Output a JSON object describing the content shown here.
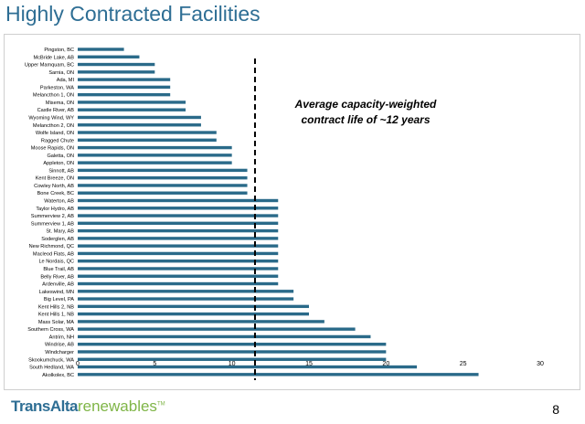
{
  "page": {
    "title": "Highly Contracted Facilities",
    "page_number": "8"
  },
  "logo": {
    "brand": "TransAlta",
    "sub": "renewables",
    "mark": "TM"
  },
  "colors": {
    "bar": "#2a6a89",
    "title": "#2e6e94",
    "logo_green": "#7fb547",
    "reference_line": "#000000"
  },
  "chart_data": {
    "type": "bar",
    "orientation": "horizontal",
    "title": "",
    "xlabel": "",
    "ylabel": "",
    "xlim": [
      0,
      30
    ],
    "xticks": [
      0,
      5,
      10,
      15,
      20,
      25,
      30
    ],
    "grid": false,
    "reference_line": {
      "value": 11.5,
      "style": "dashed",
      "label_line1": "Average capacity-weighted",
      "label_line2": "contract life of ~12 years"
    },
    "categories": [
      "Pingston, BC",
      "McBride Lake, AB",
      "Upper Mamquam, BC",
      "Sarnia, ON",
      "Ada, MI",
      "Parkeston, WA",
      "Melancthon 1, ON",
      "Misema, ON",
      "Castle River, AB",
      "Wyoming Wind, WY",
      "Melancthon 2, ON",
      "Wolfe Island, ON",
      "Ragged Chute",
      "Moose Rapids, ON",
      "Galetta, ON",
      "Appleton, ON",
      "Sinnott, AB",
      "Kent Breeze, ON",
      "Cowley North, AB",
      "Bone Creek, BC",
      "Waterton, AB",
      "Taylor Hydro, AB",
      "Summerview 2, AB",
      "Summerview 1, AB",
      "St. Mary, AB",
      "Soderglen, AB",
      "New Richmond, QC",
      "Macleod Flats, AB",
      "Le Nordais, QC",
      "Blue Trail, AB",
      "Belly River, AB",
      "Ardenville, AB",
      "Lakeswind, MN",
      "Big Level, PA",
      "Kent Hills 2, NB",
      "Kent Hills 1, NB",
      "Mass Solar, MA",
      "Southern Cross, WA",
      "Antrim, NH",
      "Windrise, AB",
      "Windcharger",
      "Skookumchuck, WA",
      "South Hedland, WA",
      "Akolkolex, BC"
    ],
    "values": [
      3,
      4,
      5,
      5,
      6,
      6,
      6,
      7,
      7,
      8,
      8,
      9,
      9,
      10,
      10,
      10,
      11,
      11,
      11,
      11,
      13,
      13,
      13,
      13,
      13,
      13,
      13,
      13,
      13,
      13,
      13,
      13,
      14,
      14,
      15,
      15,
      16,
      18,
      19,
      20,
      20,
      20,
      22,
      26
    ]
  }
}
